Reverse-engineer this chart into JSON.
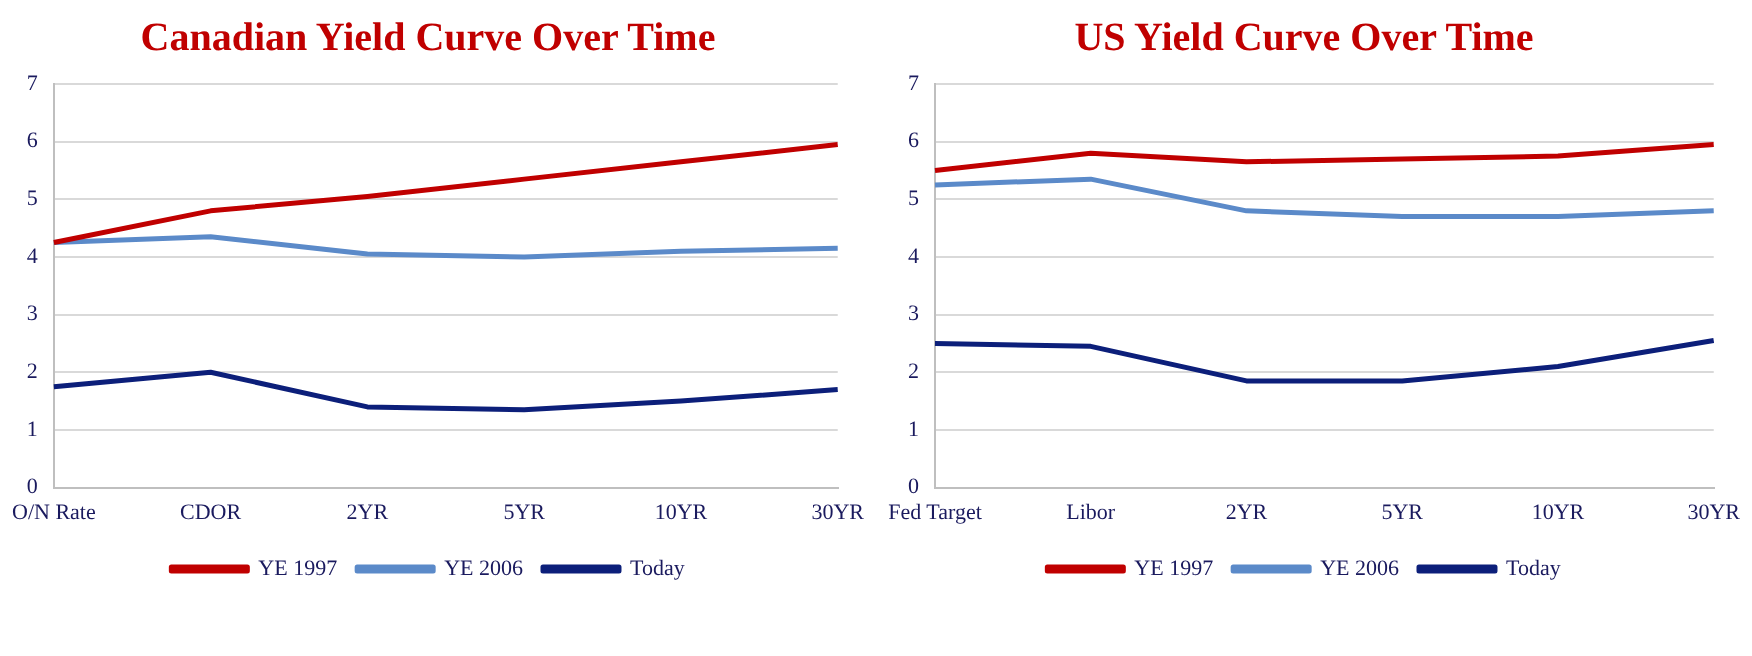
{
  "chart_data": [
    {
      "type": "line",
      "title": "Canadian Yield Curve Over Time",
      "categories": [
        "O/N Rate",
        "CDOR",
        "2YR",
        "5YR",
        "10YR",
        "30YR"
      ],
      "series": [
        {
          "name": "YE 1997",
          "color": "#c00000",
          "values": [
            4.25,
            4.8,
            5.05,
            5.35,
            5.65,
            5.95
          ]
        },
        {
          "name": "YE 2006",
          "color": "#5b8ac9",
          "values": [
            4.25,
            4.35,
            4.05,
            4.0,
            4.1,
            4.15
          ]
        },
        {
          "name": "Today",
          "color": "#0c1f7a",
          "values": [
            1.75,
            2.0,
            1.4,
            1.35,
            1.5,
            1.7
          ]
        }
      ],
      "ylim": [
        0,
        7
      ],
      "yticks": [
        0,
        1,
        2,
        3,
        4,
        5,
        6,
        7
      ],
      "grid": "y",
      "legend": "bottom",
      "marker": "none",
      "line_style": "solid"
    },
    {
      "type": "line",
      "title": "US Yield Curve Over Time",
      "categories": [
        "Fed Target",
        "Libor",
        "2YR",
        "5YR",
        "10YR",
        "30YR"
      ],
      "series": [
        {
          "name": "YE 1997",
          "color": "#c00000",
          "values": [
            5.5,
            5.8,
            5.65,
            5.7,
            5.75,
            5.95
          ]
        },
        {
          "name": "YE 2006",
          "color": "#5b8ac9",
          "values": [
            5.25,
            5.35,
            4.8,
            4.7,
            4.7,
            4.8
          ]
        },
        {
          "name": "Today",
          "color": "#0c1f7a",
          "values": [
            2.5,
            2.45,
            1.85,
            1.85,
            2.1,
            2.55
          ]
        }
      ],
      "ylim": [
        0,
        7
      ],
      "yticks": [
        0,
        1,
        2,
        3,
        4,
        5,
        6,
        7
      ],
      "grid": "y",
      "legend": "bottom",
      "marker": "none",
      "line_style": "solid"
    }
  ]
}
